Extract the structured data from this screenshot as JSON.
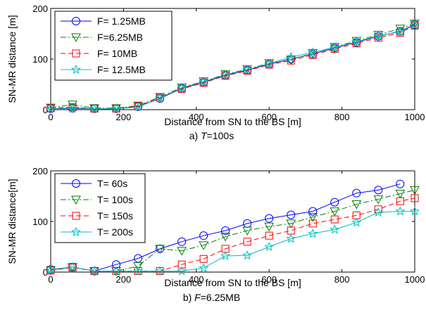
{
  "chart_data": [
    {
      "type": "line",
      "caption": {
        "prefix": "a) ",
        "var": "T",
        "rest": "=100s"
      },
      "xlabel": "Distance from SN to the BS [m]",
      "ylabel": "SN-MR distance [m]",
      "xlim": [
        0,
        1000
      ],
      "ylim": [
        0,
        200
      ],
      "xticks": [
        "0",
        "200",
        "400",
        "600",
        "800",
        "1000"
      ],
      "yticks": [
        "0",
        "100",
        "200"
      ],
      "grid": false,
      "legend_position": "top-left",
      "x": [
        0,
        60,
        120,
        180,
        240,
        300,
        360,
        420,
        480,
        540,
        600,
        660,
        720,
        780,
        840,
        900,
        960,
        1000
      ],
      "series": [
        {
          "name": "F= 1.25MB",
          "color": "#0000ff",
          "dash": "solid",
          "marker": "circle",
          "values": [
            2,
            3,
            2,
            2,
            6,
            22,
            42,
            54,
            68,
            78,
            90,
            100,
            110,
            122,
            133,
            145,
            155,
            168
          ]
        },
        {
          "name": "F=6.25MB",
          "color": "#008000",
          "dash": "dashdot",
          "marker": "triangle-down",
          "values": [
            4,
            10,
            3,
            3,
            8,
            25,
            44,
            56,
            70,
            80,
            92,
            98,
            112,
            124,
            136,
            148,
            160,
            170
          ]
        },
        {
          "name": "F= 10MB",
          "color": "#ff0000",
          "dash": "dashed",
          "marker": "square",
          "values": [
            3,
            5,
            2,
            2,
            7,
            24,
            41,
            53,
            67,
            77,
            89,
            97,
            108,
            120,
            131,
            142,
            152,
            166
          ]
        },
        {
          "name": "F= 12.5MB",
          "color": "#00bfbf",
          "dash": "solid",
          "marker": "star",
          "values": [
            2,
            2,
            2,
            2,
            5,
            23,
            43,
            55,
            69,
            79,
            91,
            104,
            113,
            123,
            134,
            146,
            154,
            167
          ]
        }
      ]
    },
    {
      "type": "line",
      "caption": {
        "prefix": "b) ",
        "var": "F",
        "rest": "=6.25MB"
      },
      "xlabel": "Distance from SN to the BS [m]",
      "ylabel": "SN-MR distance[m]",
      "xlim": [
        0,
        1000
      ],
      "ylim": [
        0,
        200
      ],
      "xticks": [
        "0",
        "200",
        "400",
        "600",
        "800",
        "1000"
      ],
      "yticks": [
        "0",
        "100",
        "200"
      ],
      "grid": false,
      "legend_position": "top-left",
      "x": [
        0,
        60,
        120,
        180,
        240,
        300,
        360,
        420,
        480,
        540,
        600,
        660,
        720,
        780,
        840,
        900,
        960,
        1000
      ],
      "series": [
        {
          "name": "T= 60s",
          "color": "#0000ff",
          "dash": "solid",
          "marker": "circle",
          "values": [
            5,
            10,
            2,
            15,
            27,
            46,
            60,
            72,
            82,
            96,
            106,
            113,
            120,
            138,
            156,
            162,
            174,
            null
          ]
        },
        {
          "name": "T= 100s",
          "color": "#008000",
          "dash": "dashdot",
          "marker": "triangle-down",
          "values": [
            4,
            10,
            2,
            2,
            12,
            46,
            42,
            53,
            70,
            82,
            90,
            96,
            109,
            120,
            134,
            144,
            155,
            162
          ]
        },
        {
          "name": "T= 150s",
          "color": "#ff0000",
          "dash": "dashed",
          "marker": "square",
          "values": [
            3,
            9,
            2,
            2,
            2,
            2,
            15,
            26,
            46,
            60,
            72,
            82,
            96,
            104,
            112,
            124,
            140,
            146
          ]
        },
        {
          "name": "T= 200s",
          "color": "#00bfbf",
          "dash": "solid",
          "marker": "star",
          "values": [
            4,
            10,
            2,
            2,
            2,
            2,
            2,
            8,
            32,
            33,
            50,
            66,
            76,
            84,
            98,
            118,
            120,
            120
          ]
        }
      ]
    }
  ]
}
